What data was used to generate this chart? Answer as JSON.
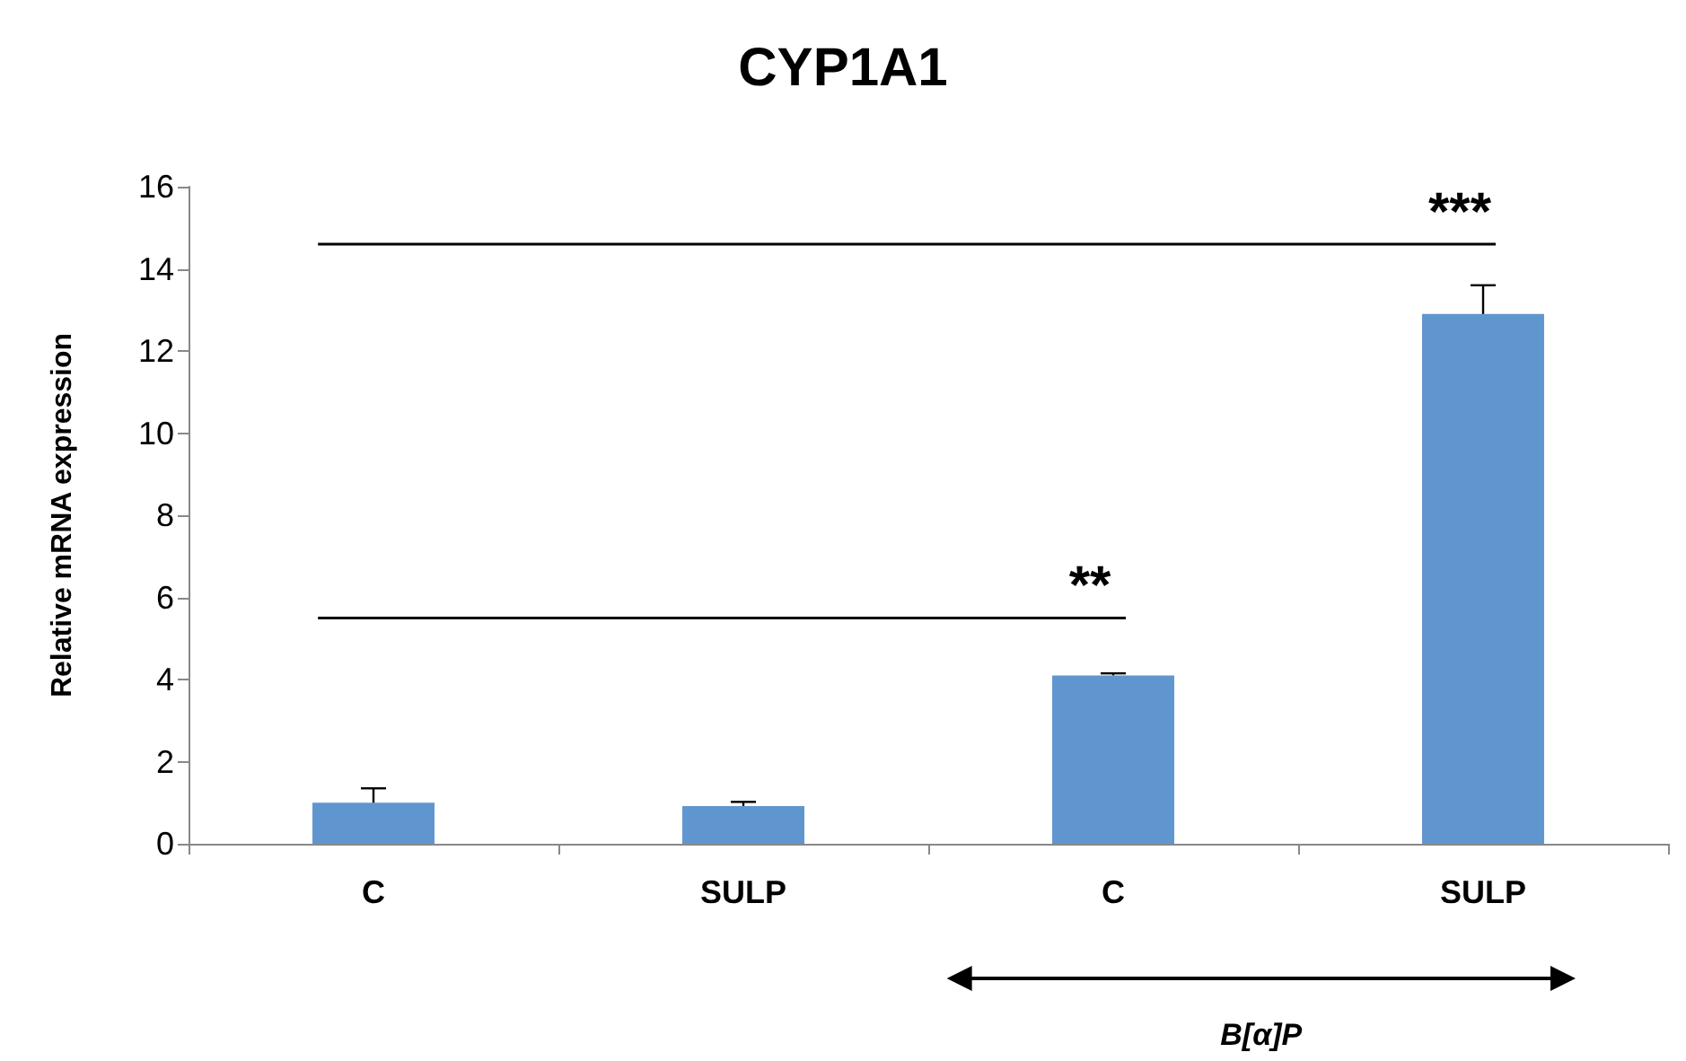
{
  "chart_data": {
    "type": "bar",
    "title": "CYP1A1",
    "ylabel": "Relative mRNA expression",
    "categories": [
      "C",
      "SULP",
      "C",
      "SULP"
    ],
    "values": [
      1.0,
      0.92,
      4.1,
      12.9
    ],
    "errors": [
      [
        1.0,
        1.35
      ],
      [
        0.92,
        1.02
      ],
      [
        4.1,
        4.15
      ],
      [
        12.9,
        13.6
      ]
    ],
    "color": "#6096cf",
    "ylim": [
      0,
      16
    ],
    "yticks": [
      0,
      2,
      4,
      6,
      8,
      10,
      12,
      14,
      16
    ],
    "grid": false,
    "ref_lines": [
      {
        "axis": "y",
        "value": 5.5,
        "label": "**"
      },
      {
        "axis": "y",
        "value": 14.6,
        "label": "***"
      }
    ],
    "annotations": [
      "B[α]P"
    ]
  }
}
